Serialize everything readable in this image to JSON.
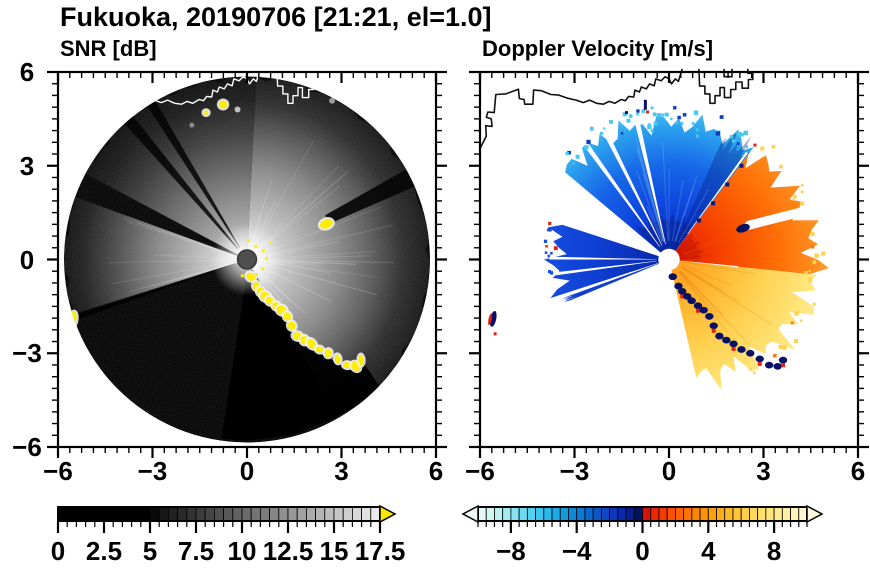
{
  "title": "Fukuoka, 20190706 [21:21, el=1.0]",
  "site": "Fukuoka",
  "date": "20190706",
  "time": "21:21",
  "elevation_deg": 1.0,
  "panels": {
    "snr": {
      "label": "SNR [dB]",
      "x_tick_labels": [
        "−6",
        "−3",
        "0",
        "3",
        "6"
      ],
      "y_tick_labels": [
        "6",
        "3",
        "0",
        "−3",
        "−6"
      ]
    },
    "velocity": {
      "label": "Doppler Velocity [m/s]",
      "x_tick_labels": [
        "−6",
        "−3",
        "0",
        "3",
        "6"
      ]
    }
  },
  "axes": {
    "xmin": -6,
    "xmax": 6,
    "ymin": -6,
    "ymax": 6,
    "major_step": 3,
    "minor_divisions": 8
  },
  "colorbars": {
    "snr": {
      "min": 0,
      "max": 17.5,
      "segment_step": 0.5,
      "tick_label_values": [
        0,
        2.5,
        5,
        7.5,
        10,
        12.5,
        15,
        17.5
      ],
      "tick_labels": [
        "0",
        "2.5",
        "5",
        "7.5",
        "10",
        "12.5",
        "15",
        "17.5"
      ],
      "minor_tick_step": 0.5,
      "stops": [
        [
          0,
          "#000000"
        ],
        [
          5,
          "#000000"
        ],
        [
          5.5,
          "#131313"
        ],
        [
          17.5,
          "#efefef"
        ]
      ],
      "over_arrow_color": "#ffe800"
    },
    "velocity": {
      "min": -10,
      "max": 10,
      "segment_step": 0.5,
      "tick_label_values": [
        -8,
        -4,
        0,
        4,
        8
      ],
      "tick_labels": [
        "−8",
        "−4",
        "0",
        "4",
        "8"
      ],
      "minor_tick_step": 0.5,
      "stops_negative": [
        [
          -10,
          "#eefcf8"
        ],
        [
          -9,
          "#c9f4ef"
        ],
        [
          -8,
          "#94e9f1"
        ],
        [
          -7,
          "#5cd7f1"
        ],
        [
          -6,
          "#2fc0ec"
        ],
        [
          -5,
          "#14a3e2"
        ],
        [
          -4,
          "#0b83d6"
        ],
        [
          -3,
          "#0b5fc8"
        ],
        [
          -2,
          "#0d3fc0"
        ],
        [
          -1.2,
          "#0a28ac"
        ],
        [
          -0.6,
          "#071c8c"
        ],
        [
          -0.1,
          "#030f52"
        ]
      ],
      "stops_positive": [
        [
          0.1,
          "#cf0d0d"
        ],
        [
          0.8,
          "#ee2800"
        ],
        [
          1.6,
          "#fa4a00"
        ],
        [
          2.5,
          "#ff6c00"
        ],
        [
          3.5,
          "#ff8c00"
        ],
        [
          4.5,
          "#ffa70e"
        ],
        [
          5.5,
          "#ffc030"
        ],
        [
          6.5,
          "#ffd452"
        ],
        [
          7.5,
          "#ffe272"
        ],
        [
          8.5,
          "#ffed98"
        ],
        [
          9.3,
          "#fef4bc"
        ],
        [
          10,
          "#fcf7d8"
        ]
      ],
      "under_arrow_color": "#eefcf8",
      "over_arrow_color": "#fcf7d8"
    }
  },
  "chart_data": [
    {
      "type": "heatmap",
      "subtype": "doppler_lidar_ppi_scan",
      "title": "SNR [dB]",
      "x_range": [
        -6,
        6
      ],
      "y_range": [
        -6,
        6
      ],
      "x_ticks": [
        -6,
        -3,
        0,
        3,
        6
      ],
      "y_ticks": [
        -6,
        -3,
        0,
        3,
        6
      ],
      "scan_radius": 5.85,
      "colorbar": {
        "orientation": "horizontal",
        "min": 0,
        "max": 17.5,
        "tick_labels": [
          0,
          2.5,
          5,
          7.5,
          10,
          12.5,
          15,
          17.5
        ],
        "palette": "discrete grayscale black to white, yellow over-range arrow"
      },
      "features": [
        "circular PPI scan disk centered at origin on white background",
        "bright high-SNR fan from north through east to southeast of the lidar",
        "bright wedge toward the west and a dimmer fan toward the northwest",
        "black blocked/shadow sectors toward south and southwest",
        "two narrow dark shadow streaks through the northwest fan",
        "yellow saturated hard-target returns along a coastal arc from (0.1,-0.6) to (3.6,-3.3)",
        "yellow point target near (2.5,1.1) casting a dark shadow streak toward ENE",
        "yellow return at the western scan edge near (-5.6,-1.9)",
        "small yellow and gray echoes near (-0.8,5.0) under the shoreline",
        "white coastline overlay across the northern part of the disk",
        "bright white glow and dark instrument dot at scan center"
      ]
    },
    {
      "type": "heatmap",
      "subtype": "doppler_lidar_ppi_scan",
      "title": "Doppler Velocity [m/s]",
      "x_range": [
        -6,
        6
      ],
      "y_range": [
        -6,
        6
      ],
      "x_ticks": [
        -6,
        -3,
        0,
        3,
        6
      ],
      "y_ticks": [
        -6,
        -3,
        0,
        3,
        6
      ],
      "colorbar": {
        "orientation": "horizontal",
        "min": -10,
        "max": 10,
        "tick_labels": [
          -8,
          -4,
          0,
          4,
          8
        ],
        "palette": "cyan-blue-navy negative, dark red-orange-yellow-cream positive, arrows both ends"
      },
      "features": [
        "white no-data background",
        "broad blue fan (negative, toward lidar, -2 to -9 m/s) to the north, cyan at far range",
        "three narrow white no-data slits through the northwest side of the blue fan",
        "blue wedge (negative) pointing west with white radial gaps",
        "red-orange fan (positive) to the northeast",
        "orange-to-yellow fan (+2 to +9 m/s) from east to south, pale yellow at far range",
        "dark navy ground-clutter arc along the southern boundary from (0.3,-0.9) to (3.6,-3.3) with red flecks",
        "navy point target near (2.4,1.0) with white shadow streak toward ENE",
        "isolated navy/red echo near (-5.6,-1.9)",
        "small navy, red and cyan specks under the coastline near (-0.8,4.9)",
        "black coastline overlay at top, white circle at scan center"
      ]
    }
  ]
}
